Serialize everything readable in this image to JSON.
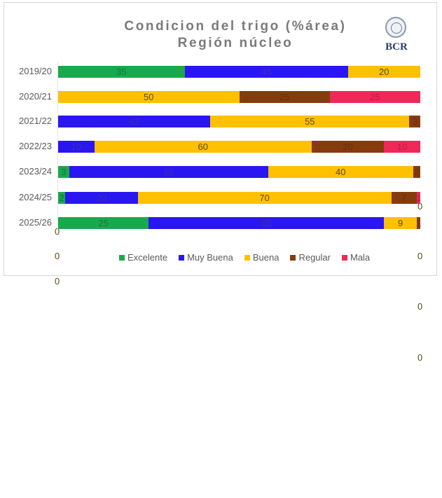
{
  "header": {
    "title_line1": "Condicion del trigo (%área)",
    "title_line2": "Región núcleo",
    "logo_text": "BCR"
  },
  "colors": {
    "Excelente": "#1aa84f",
    "Muy Buena": "#2a16f0",
    "Buena": "#ffc000",
    "Regular": "#843c0c",
    "Mala": "#f0285a"
  },
  "legend": [
    {
      "label": "Excelente",
      "color": "#1aa84f"
    },
    {
      "label": "Muy Buena",
      "color": "#2a16f0"
    },
    {
      "label": "Buena",
      "color": "#ffc000"
    },
    {
      "label": "Regular",
      "color": "#843c0c"
    },
    {
      "label": "Mala",
      "color": "#f0285a"
    }
  ],
  "chart_data": {
    "type": "bar",
    "orientation": "horizontal",
    "stacked": true,
    "title": "Condicion del trigo (%área) Región núcleo",
    "xlabel": "",
    "ylabel": "",
    "xlim": [
      0,
      100
    ],
    "grid": false,
    "legend_position": "bottom",
    "categories": [
      "2019/20",
      "2020/21",
      "2021/22",
      "2022/23",
      "2023/24",
      "2024/25",
      "2025/26"
    ],
    "series": [
      {
        "name": "Excelente",
        "values": [
          35,
          0,
          0,
          0,
          3,
          2,
          25
        ]
      },
      {
        "name": "Muy Buena",
        "values": [
          45,
          0,
          42,
          10,
          55,
          20,
          65
        ]
      },
      {
        "name": "Buena",
        "values": [
          20,
          50,
          55,
          60,
          40,
          70,
          9
        ]
      },
      {
        "name": "Regular",
        "values": [
          0,
          25,
          3,
          20,
          2,
          7,
          1
        ]
      },
      {
        "name": "Mala",
        "values": [
          0,
          25,
          0,
          10,
          0,
          1,
          0
        ]
      }
    ],
    "data_labels": [
      [
        "35",
        "45",
        "20",
        "0"
      ],
      [
        "0",
        "50",
        "25",
        "25"
      ],
      [
        "0",
        "42",
        "55",
        "0"
      ],
      [
        "0",
        "10",
        "60",
        "20",
        "10"
      ],
      [
        "3",
        "55",
        "40",
        "0"
      ],
      [
        "2",
        "20",
        "70",
        "7",
        "1"
      ],
      [
        "25",
        "65",
        "9",
        "0"
      ]
    ]
  }
}
